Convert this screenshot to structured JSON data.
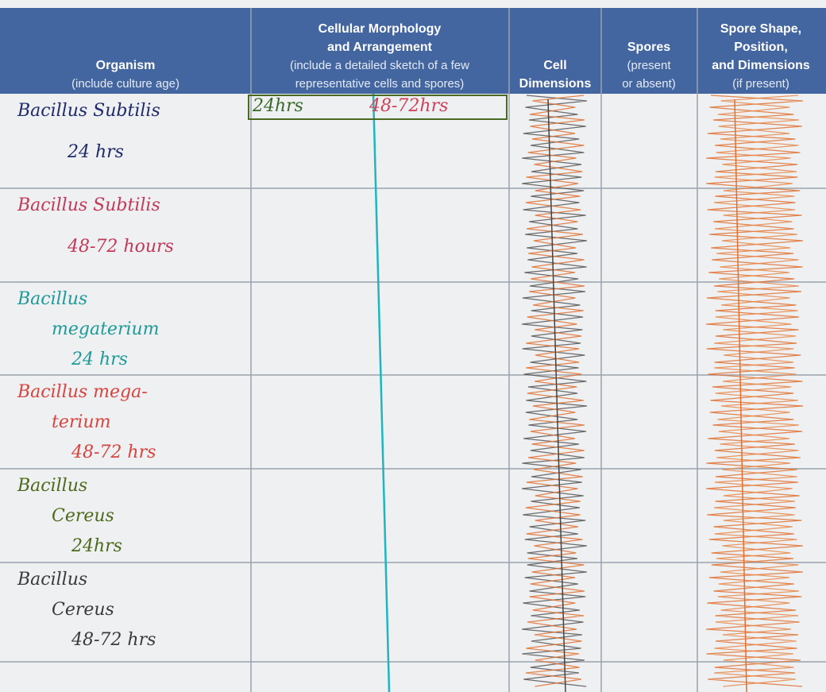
{
  "header": {
    "columns": [
      {
        "title": [
          "Organism"
        ],
        "subtitle": [
          "(include culture age)"
        ]
      },
      {
        "title": [
          "Cellular Morphology",
          "and Arrangement"
        ],
        "subtitle": [
          "(include a detailed sketch of a few",
          "representative cells and spores)"
        ]
      },
      {
        "title": [
          "Cell",
          "Dimensions"
        ],
        "subtitle": []
      },
      {
        "title": [
          "Spores"
        ],
        "subtitle": [
          "(present",
          "or absent)"
        ]
      },
      {
        "title": [
          "Spore Shape,",
          "Position,",
          "and Dimensions"
        ],
        "subtitle": [
          "(if present)"
        ]
      }
    ]
  },
  "subheaders": [
    {
      "text": "24hrs",
      "color": "#3a6a2a"
    },
    {
      "text": "48-72hrs",
      "color": "#d0405a"
    }
  ],
  "rows": [
    {
      "lines": [
        "Bacillus Subtilis",
        "24 hrs"
      ],
      "color": "#1f2a6a"
    },
    {
      "lines": [
        "Bacillus Subtilis",
        "48-72 hours"
      ],
      "color": "#c23a5a"
    },
    {
      "lines": [
        "Bacillus",
        "megaterium",
        "24 hrs"
      ],
      "color": "#1e9a98"
    },
    {
      "lines": [
        "Bacillus mega-",
        "terium",
        "48-72 hrs"
      ],
      "color": "#d8443e"
    },
    {
      "lines": [
        "Bacillus",
        "Cereus",
        "24hrs"
      ],
      "color": "#4d6a1c"
    },
    {
      "lines": [
        "Bacillus",
        "Cereus",
        "48-72 hrs"
      ],
      "color": "#3a3a3a"
    }
  ]
}
